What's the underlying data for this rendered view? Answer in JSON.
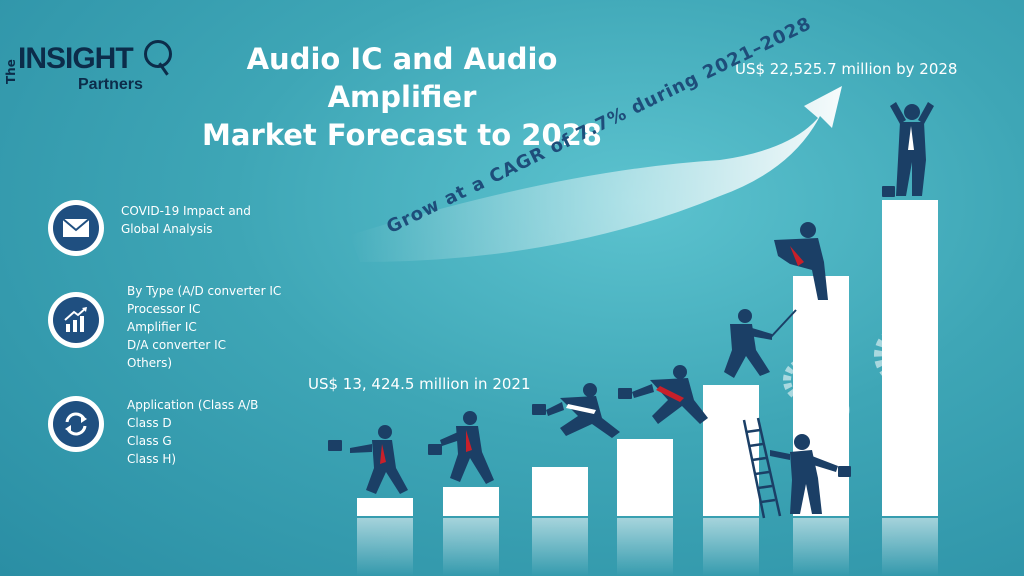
{
  "brand": {
    "logo_the": "The",
    "logo_insight": "INSIGHT",
    "logo_partners": "Partners"
  },
  "header": {
    "title_line1": "Audio IC and Audio Amplifier",
    "title_line2": "Market Forecast to 2028"
  },
  "forecast": {
    "value_2028": "US$ 22,525.7  million by 2028",
    "value_2021": "US$ 13, 424.5 million in 2021",
    "cagr_text": "Grow at a CAGR of 7.7% during 2021–2028"
  },
  "features": [
    {
      "icon": "envelope-icon",
      "lines": [
        "COVID-19 Impact and",
        "Global Analysis"
      ]
    },
    {
      "icon": "growth-chart-icon",
      "lines": [
        "By Type (A/D converter IC",
        "Processor IC",
        "Amplifier IC",
        "D/A converter IC",
        "Others)"
      ]
    },
    {
      "icon": "refresh-icon",
      "lines": [
        "Application (Class A/B",
        "Class D",
        "Class G",
        "Class H)"
      ]
    }
  ],
  "colors": {
    "background": "#3ea6b6",
    "navy": "#1f4f80",
    "text": "#ffffff",
    "tie": "#c8202a"
  }
}
